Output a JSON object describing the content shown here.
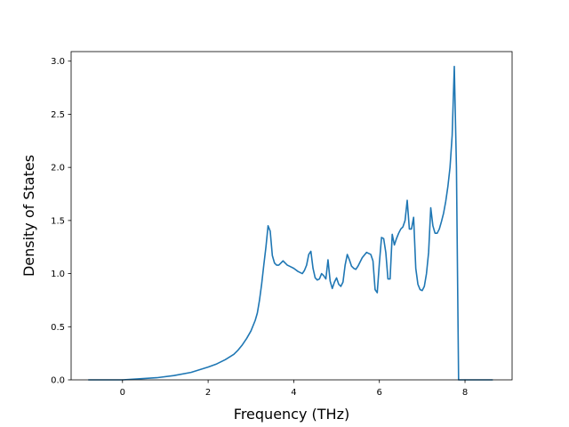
{
  "chart_data": {
    "type": "line",
    "title": "",
    "xlabel": "Frequency (THz)",
    "ylabel": "Density of States",
    "xlim": [
      -1.2,
      9.1
    ],
    "ylim": [
      0,
      3.09
    ],
    "xticks": [
      0,
      2,
      4,
      6,
      8
    ],
    "xtick_labels": [
      "0",
      "2",
      "4",
      "6",
      "8"
    ],
    "yticks": [
      0.0,
      0.5,
      1.0,
      1.5,
      2.0,
      2.5,
      3.0
    ],
    "ytick_labels": [
      "0.0",
      "0.5",
      "1.0",
      "1.5",
      "2.0",
      "2.5",
      "3.0"
    ],
    "grid": false,
    "legend": "none",
    "line_color": "#1f77b4",
    "series": [
      {
        "x": [
          -0.8,
          -0.4,
          0.0,
          0.4,
          0.8,
          1.2,
          1.6,
          2.0,
          2.2,
          2.4,
          2.6,
          2.7,
          2.8,
          2.9,
          3.0,
          3.1,
          3.15,
          3.2,
          3.25,
          3.3,
          3.35,
          3.4,
          3.45,
          3.5,
          3.55,
          3.6,
          3.65,
          3.7,
          3.75,
          3.8,
          3.85,
          3.9,
          4.0,
          4.1,
          4.2,
          4.25,
          4.3,
          4.35,
          4.4,
          4.45,
          4.5,
          4.55,
          4.6,
          4.65,
          4.7,
          4.75,
          4.8,
          4.85,
          4.9,
          4.95,
          5.0,
          5.05,
          5.1,
          5.15,
          5.2,
          5.25,
          5.3,
          5.35,
          5.4,
          5.45,
          5.5,
          5.6,
          5.7,
          5.8,
          5.85,
          5.9,
          5.95,
          6.0,
          6.05,
          6.1,
          6.15,
          6.2,
          6.25,
          6.3,
          6.35,
          6.4,
          6.45,
          6.5,
          6.55,
          6.6,
          6.65,
          6.7,
          6.75,
          6.8,
          6.85,
          6.9,
          6.95,
          7.0,
          7.05,
          7.1,
          7.15,
          7.2,
          7.25,
          7.3,
          7.35,
          7.4,
          7.45,
          7.5,
          7.55,
          7.6,
          7.65,
          7.7,
          7.75,
          7.8,
          7.85,
          7.9,
          8.0,
          8.3,
          8.65
        ],
        "y": [
          0.0,
          0.0,
          0.0,
          0.01,
          0.02,
          0.04,
          0.07,
          0.12,
          0.15,
          0.19,
          0.24,
          0.28,
          0.33,
          0.39,
          0.46,
          0.56,
          0.63,
          0.75,
          0.9,
          1.08,
          1.25,
          1.45,
          1.4,
          1.17,
          1.1,
          1.08,
          1.08,
          1.1,
          1.12,
          1.1,
          1.08,
          1.07,
          1.05,
          1.02,
          1.0,
          1.03,
          1.08,
          1.18,
          1.21,
          1.05,
          0.96,
          0.94,
          0.95,
          1.0,
          0.98,
          0.95,
          1.13,
          0.93,
          0.86,
          0.92,
          0.96,
          0.9,
          0.88,
          0.92,
          1.08,
          1.18,
          1.13,
          1.07,
          1.05,
          1.04,
          1.07,
          1.15,
          1.2,
          1.18,
          1.12,
          0.85,
          0.82,
          1.1,
          1.34,
          1.33,
          1.2,
          0.95,
          0.95,
          1.37,
          1.27,
          1.33,
          1.38,
          1.42,
          1.44,
          1.5,
          1.69,
          1.42,
          1.42,
          1.53,
          1.05,
          0.9,
          0.85,
          0.84,
          0.88,
          1.0,
          1.2,
          1.62,
          1.45,
          1.38,
          1.38,
          1.42,
          1.49,
          1.57,
          1.68,
          1.82,
          2.0,
          2.3,
          2.95,
          2.0,
          0.0,
          0.0,
          0.0,
          0.0,
          0.0
        ]
      }
    ]
  }
}
